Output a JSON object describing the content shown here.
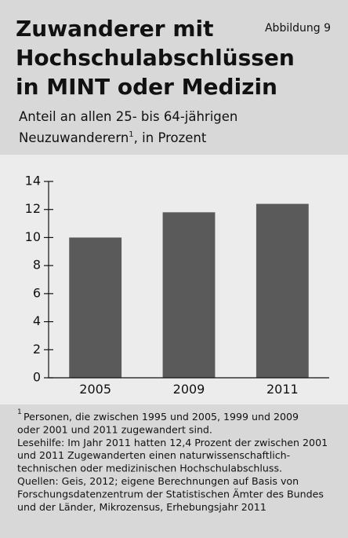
{
  "chart_data": {
    "type": "bar",
    "title_lines": [
      "Zuwanderer mit",
      "Hochschulabschlüssen",
      "in MINT oder Medizin"
    ],
    "figure_label": "Abbildung 9",
    "subtitle": {
      "line1": "Anteil an allen 25- bis 64-jährigen",
      "line2_start": "Neuzuwanderern",
      "footnote_ref": "1",
      "line2_end": ", in Prozent"
    },
    "categories": [
      "2005",
      "2009",
      "2011"
    ],
    "values": [
      10.0,
      11.8,
      12.4
    ],
    "color": "#5a5a5a",
    "ylim": [
      0,
      14
    ],
    "yticks": [
      0,
      2,
      4,
      6,
      8,
      10,
      12,
      14
    ],
    "notes": {
      "marker": "1",
      "lines": [
        "Personen, die zwischen 1995 und 2005, 1999 und 2009",
        "oder 2001 und 2011 zugewandert sind.",
        "Lesehilfe: Im Jahr 2011 hatten 12,4 Prozent der zwischen 2001",
        "und 2011 Zugewanderten einen naturwissenschaftlich-",
        "technischen oder medizinischen Hochschulabschluss.",
        "Quellen: Geis, 2012; eigene Berechnungen auf Basis von",
        "Forschungsdatenzentrum der Statistischen Ämter des Bundes",
        "und der Länder, Mikrozensus, Erhebungsjahr 2011"
      ]
    }
  }
}
